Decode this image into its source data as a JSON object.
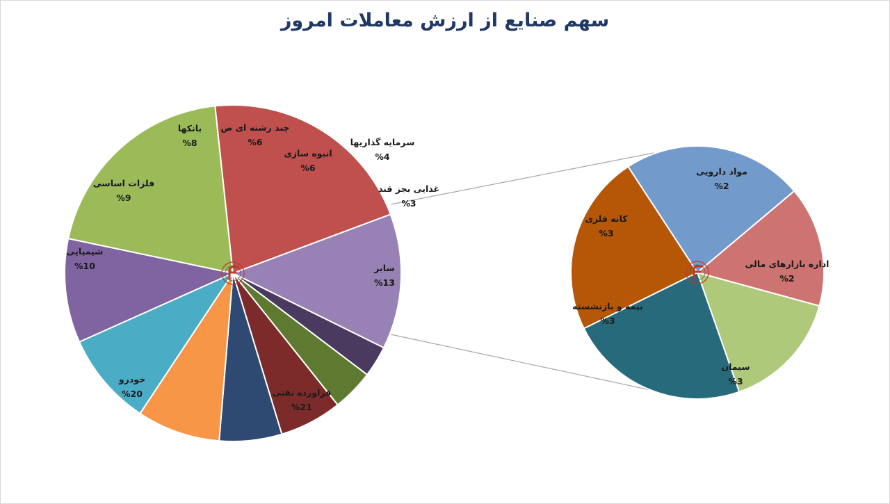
{
  "title": "سهم صنایع از ارزش معاملات امروز",
  "chart_data": [
    {
      "type": "pie",
      "series": [
        {
          "label": "سایر",
          "value": 13,
          "display": "13%",
          "color": "#9882b5"
        },
        {
          "label": "غذایی بجز قند",
          "value": 3,
          "display": "3%",
          "color": "#4b3a60"
        },
        {
          "label": "سرمایه گذاریها",
          "value": 4,
          "display": "4%",
          "color": "#5e7a31"
        },
        {
          "label": "انبوه سازی",
          "value": 6,
          "display": "6%",
          "color": "#7d2b2a"
        },
        {
          "label": "چند رشته ای ص",
          "value": 6,
          "display": "6%",
          "color": "#2e4a72"
        },
        {
          "label": "بانکها",
          "value": 8,
          "display": "8%",
          "color": "#f79646"
        },
        {
          "label": "فلزات اساسی",
          "value": 9,
          "display": "9%",
          "color": "#4bacc6"
        },
        {
          "label": "شیمیایی",
          "value": 10,
          "display": "10%",
          "color": "#8064a2"
        },
        {
          "label": "خودرو",
          "value": 20,
          "display": "20%",
          "color": "#9bbb59"
        },
        {
          "label": "فراورده نفتی",
          "value": 21,
          "display": "21%",
          "color": "#c0504d"
        }
      ]
    },
    {
      "type": "pie",
      "series": [
        {
          "label": "اداره بازارهای مالی",
          "value": 2,
          "display": "2%",
          "color": "#afc97a"
        },
        {
          "label": "سیمان",
          "value": 3,
          "display": "3%",
          "color": "#276a7c"
        },
        {
          "label": "بیمه و بازنشسته",
          "value": 3,
          "display": "3%",
          "color": "#b65708"
        },
        {
          "label": "کانه فلزی",
          "value": 3,
          "display": "3%",
          "color": "#729aca"
        },
        {
          "label": "مواد دارویی",
          "value": 2,
          "display": "2%",
          "color": "#cd7371"
        }
      ]
    }
  ]
}
